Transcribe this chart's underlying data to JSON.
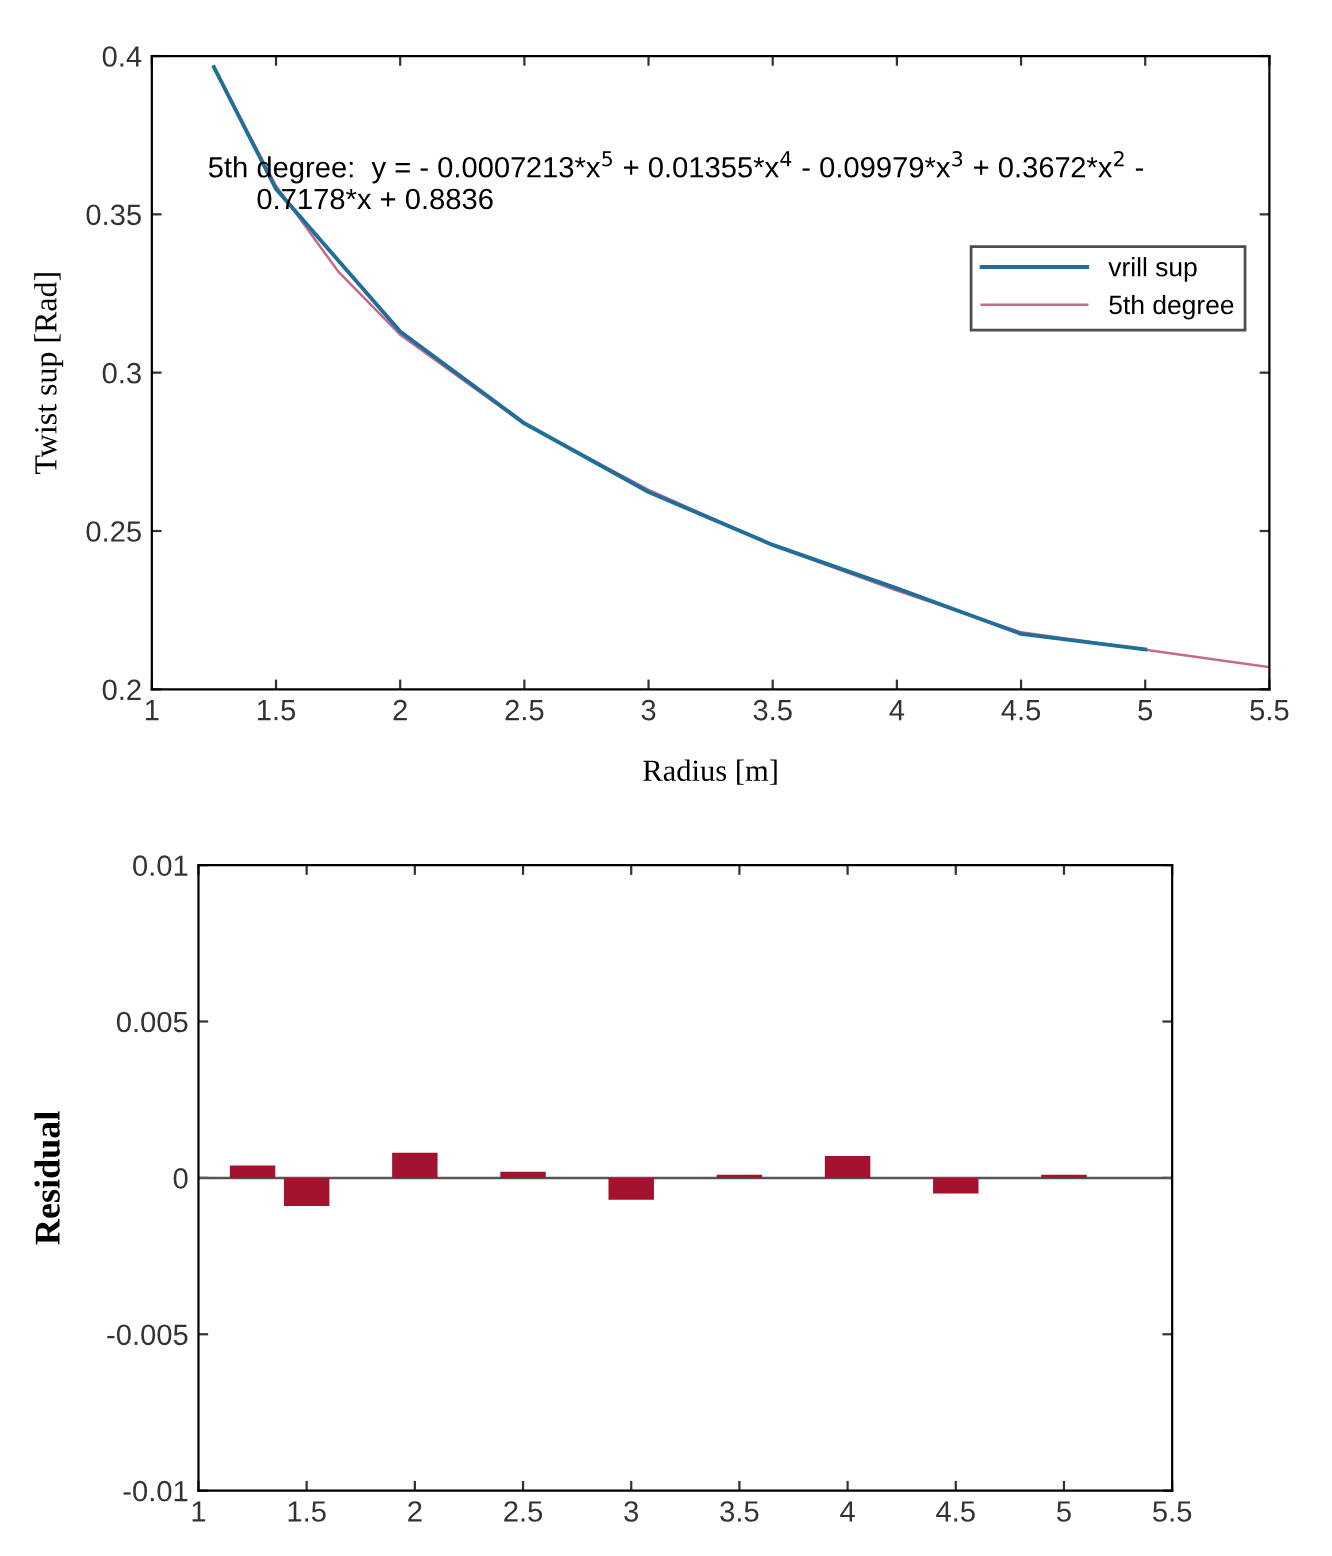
{
  "chart_data": [
    {
      "type": "line",
      "xlabel": "Radius [m]",
      "ylabel": "Twist sup [Rad]",
      "xlim": [
        1,
        5.5
      ],
      "ylim": [
        0.2,
        0.4
      ],
      "xticks": [
        1,
        1.5,
        2,
        2.5,
        3,
        3.5,
        4,
        4.5,
        5,
        5.5
      ],
      "yticks": [
        0.2,
        0.25,
        0.3,
        0.35,
        0.4
      ],
      "grid": false,
      "legend": "top right",
      "annotations": [
        "5th degree:  y = - 0.0007213*x$^{5}$ + 0.01355*x$^{4}$ - 0.09979*x$^{3}$ + 0.3672*x$^{2}$ -\n      0.7178*x + 0.8836"
      ],
      "series": [
        {
          "name": "vrill sup",
          "color": "#1f6f9a",
          "x": [
            1.25,
            1.5,
            2,
            2.5,
            3,
            3.5,
            4,
            4.5,
            5
          ],
          "values": [
            0.3965,
            0.358,
            0.313,
            0.284,
            0.2623,
            0.2456,
            0.2319,
            0.2175,
            0.2126
          ]
        },
        {
          "name": "5th degree",
          "color": "#c46a8a",
          "x": [
            1.25,
            1.5,
            1.75,
            2,
            2.5,
            3,
            3.5,
            4,
            4.5,
            5,
            5.5
          ],
          "values": [
            0.3961,
            0.359,
            0.332,
            0.312,
            0.2838,
            0.263,
            0.2455,
            0.2312,
            0.218,
            0.2125,
            0.207
          ]
        }
      ]
    },
    {
      "type": "bar",
      "ylabel": "Residual",
      "xlim": [
        1,
        5.5
      ],
      "ylim": [
        -0.01,
        0.01
      ],
      "xticks": [
        1,
        1.5,
        2,
        2.5,
        3,
        3.5,
        4,
        4.5,
        5,
        5.5
      ],
      "yticks": [
        -0.01,
        -0.005,
        0,
        0.005,
        0.01
      ],
      "grid": false,
      "ref_lines": [
        {
          "axis": "y",
          "value": 0,
          "color": "#555555"
        }
      ],
      "series": [
        {
          "color": "#a3122f",
          "x": [
            1.25,
            1.5,
            2,
            2.5,
            3,
            3.5,
            4,
            4.5,
            5
          ],
          "values": [
            0.0004,
            -0.0009,
            0.0008,
            0.0002,
            -0.0007,
            0.0001,
            0.0007,
            -0.0005,
            0.0001
          ]
        }
      ]
    }
  ]
}
